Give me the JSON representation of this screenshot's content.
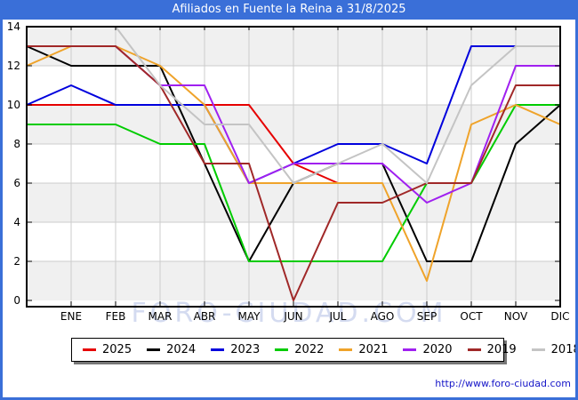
{
  "window": {
    "title": "Afiliados en Fuente la Reina a 31/8/2025",
    "frame_color": "#3a6fd8",
    "titlebar_text_color": "#ffffff"
  },
  "watermark": {
    "text": "FORO-CIUDAD.COM"
  },
  "footer": {
    "url": "http://www.foro-ciudad.com"
  },
  "chart_data": {
    "type": "line",
    "title": "Afiliados en Fuente la Reina a 31/8/2025",
    "xlabel": "",
    "ylabel": "",
    "x_categories": [
      "ENE",
      "FEB",
      "MAR",
      "ABR",
      "MAY",
      "JUN",
      "JUL",
      "AGO",
      "SEP",
      "OCT",
      "NOV",
      "DIC"
    ],
    "x_positions_note": "each series carries a lead point drawn on the left axis before ENE; 2025 series ends at AGO (data to 31/8/2025)",
    "ylim": [
      0,
      14
    ],
    "yticks": [
      0,
      2,
      4,
      6,
      8,
      10,
      12,
      14
    ],
    "grid": true,
    "band_fill_color": "#f0f0f0",
    "gridline_color": "#cccccc",
    "legend_position": "bottom-outside",
    "series": [
      {
        "name": "2025",
        "color": "#e60000",
        "values": [
          10,
          10,
          10,
          10,
          10,
          10,
          7,
          6,
          6
        ]
      },
      {
        "name": "2024",
        "color": "#000000",
        "values": [
          13,
          12,
          12,
          12,
          7,
          2,
          6,
          7,
          7,
          2,
          2,
          8,
          10
        ]
      },
      {
        "name": "2023",
        "color": "#0000dd",
        "values": [
          10,
          11,
          10,
          10,
          10,
          6,
          7,
          8,
          8,
          7,
          13,
          13,
          13
        ]
      },
      {
        "name": "2022",
        "color": "#00cc00",
        "values": [
          9,
          9,
          9,
          8,
          8,
          2,
          2,
          2,
          2,
          6,
          6,
          10,
          10
        ]
      },
      {
        "name": "2021",
        "color": "#efa32a",
        "values": [
          12,
          13,
          13,
          12,
          10,
          6,
          6,
          6,
          6,
          1,
          9,
          10,
          9
        ]
      },
      {
        "name": "2020",
        "color": "#a020f0",
        "values": [
          13,
          13,
          13,
          11,
          11,
          6,
          7,
          7,
          7,
          5,
          6,
          12,
          12
        ]
      },
      {
        "name": "2019",
        "color": "#a02828",
        "values": [
          13,
          13,
          13,
          11,
          7,
          7,
          0,
          5,
          5,
          6,
          6,
          11,
          11
        ]
      },
      {
        "name": "2018",
        "color": "#c4c4c4",
        "values": [
          14,
          14,
          14,
          11,
          9,
          9,
          6,
          7,
          8,
          6,
          11,
          13,
          13
        ]
      }
    ]
  }
}
